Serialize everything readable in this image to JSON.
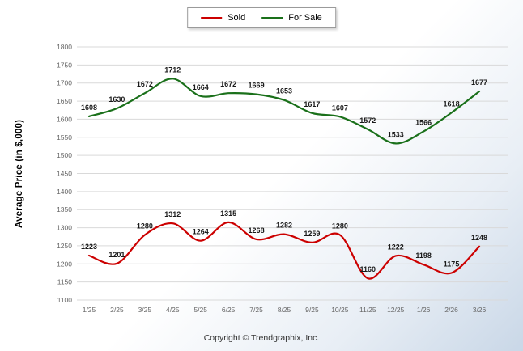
{
  "legend": {
    "sold_label": "Sold",
    "for_sale_label": "For Sale"
  },
  "ylabel": "Average Price (in $,000)",
  "footer": "Copyright © Trendgraphix, Inc.",
  "colors": {
    "sold": "#cc0000",
    "for_sale": "#1a701a",
    "grid": "#d9d9d9",
    "tick_text": "#666666",
    "data_label": "#1a1a1a"
  },
  "chart_data": {
    "type": "line",
    "title": "",
    "xlabel": "",
    "ylabel": "Average Price (in $,000)",
    "ylim": [
      1100,
      1800
    ],
    "ytick_step": 50,
    "grid": "horizontal",
    "legend_position": "top-center",
    "categories": [
      "1/25",
      "2/25",
      "3/25",
      "4/25",
      "5/25",
      "6/25",
      "7/25",
      "8/25",
      "9/25",
      "10/25",
      "11/25",
      "12/25",
      "1/26",
      "2/26",
      "3/26"
    ],
    "series": [
      {
        "name": "For Sale",
        "color": "#1a701a",
        "values": [
          1608,
          1630,
          1672,
          1712,
          1664,
          1672,
          1669,
          1653,
          1617,
          1607,
          1572,
          1533,
          1566,
          1618,
          1677
        ]
      },
      {
        "name": "Sold",
        "color": "#cc0000",
        "values": [
          1223,
          1201,
          1280,
          1312,
          1264,
          1315,
          1268,
          1282,
          1259,
          1280,
          1160,
          1222,
          1198,
          1175,
          1248
        ]
      }
    ]
  }
}
